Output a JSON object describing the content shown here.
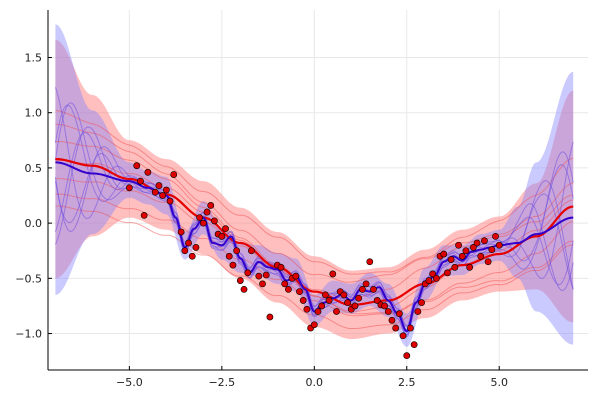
{
  "chart_data": {
    "type": "line",
    "title": "",
    "xlabel": "",
    "ylabel": "",
    "xlim": [
      -7.2,
      7.4
    ],
    "ylim": [
      -1.33,
      1.93
    ],
    "grid": true,
    "legend": "none",
    "x_ticks": [
      {
        "value": -5,
        "label": "−5.0"
      },
      {
        "value": -2.5,
        "label": "−2.5"
      },
      {
        "value": 0,
        "label": "0.0"
      },
      {
        "value": 2.5,
        "label": "2.5"
      },
      {
        "value": 5,
        "label": "5.0"
      }
    ],
    "y_ticks": [
      {
        "value": 1.5,
        "label": "1.5"
      },
      {
        "value": 1.0,
        "label": "1.0"
      },
      {
        "value": 0.5,
        "label": "0.5"
      },
      {
        "value": 0.0,
        "label": "0.0"
      },
      {
        "value": -0.5,
        "label": "−0.5"
      },
      {
        "value": -1.0,
        "label": "−1.0"
      }
    ],
    "colors": {
      "red_band": "#ff8080",
      "blue_band": "#8080ff",
      "red_mean": "#e60000",
      "blue_mean": "#3300cc",
      "red_samples": "#f05050",
      "blue_samples": "#7050e0",
      "points": "#dd0000"
    },
    "series": [
      {
        "role": "wide-model-mean",
        "x": [
          -7,
          -6,
          -5,
          -4,
          -3,
          -2,
          -1,
          0,
          1,
          2,
          3,
          4,
          5,
          6,
          7
        ],
        "y": [
          0.58,
          0.52,
          0.4,
          0.26,
          0.05,
          -0.18,
          -0.4,
          -0.62,
          -0.74,
          -0.7,
          -0.55,
          -0.38,
          -0.28,
          -0.12,
          0.15
        ]
      },
      {
        "role": "wide-model-band",
        "x": [
          -7,
          -6,
          -5,
          -4,
          -3,
          -2,
          -1,
          0,
          1,
          2,
          3,
          4,
          5,
          6,
          7
        ],
        "lower": [
          -0.5,
          -0.12,
          0.05,
          -0.06,
          -0.28,
          -0.5,
          -0.72,
          -0.94,
          -1.05,
          -1.0,
          -0.86,
          -0.7,
          -0.62,
          -0.6,
          -0.9
        ],
        "upper": [
          1.66,
          1.16,
          0.75,
          0.58,
          0.38,
          0.14,
          -0.08,
          -0.3,
          -0.43,
          -0.4,
          -0.24,
          -0.06,
          0.06,
          0.36,
          1.2
        ]
      },
      {
        "role": "flexible-model-mean",
        "x": [
          -7,
          -6,
          -5,
          -4.5,
          -4.0,
          -3.75,
          -3.5,
          -3.25,
          -3.0,
          -2.75,
          -2.5,
          -2.25,
          -2.0,
          -1.75,
          -1.5,
          -1.25,
          -1.0,
          -0.75,
          -0.5,
          -0.25,
          0.0,
          0.25,
          0.5,
          0.75,
          1.0,
          1.25,
          1.5,
          1.75,
          2.0,
          2.25,
          2.5,
          2.75,
          3.0,
          3.25,
          3.5,
          3.75,
          4.0,
          4.25,
          4.5,
          4.75,
          5.0,
          5.5,
          6,
          7
        ],
        "y": [
          0.55,
          0.45,
          0.38,
          0.32,
          0.25,
          0.05,
          -0.22,
          -0.05,
          0.05,
          -0.18,
          -0.2,
          -0.12,
          -0.32,
          -0.45,
          -0.35,
          -0.4,
          -0.42,
          -0.52,
          -0.48,
          -0.6,
          -0.8,
          -0.72,
          -0.68,
          -0.65,
          -0.7,
          -0.6,
          -0.62,
          -0.58,
          -0.7,
          -0.82,
          -0.98,
          -0.72,
          -0.55,
          -0.48,
          -0.35,
          -0.3,
          -0.34,
          -0.26,
          -0.24,
          -0.22,
          -0.2,
          -0.18,
          -0.1,
          0.05
        ]
      },
      {
        "role": "flexible-model-band",
        "x": [
          -7,
          -6,
          -5,
          -4.5,
          -4.0,
          -3.5,
          -3.0,
          -2.5,
          -2.0,
          -1.5,
          -1.0,
          -0.5,
          0.0,
          0.5,
          1.0,
          1.5,
          2.0,
          2.5,
          3.0,
          3.5,
          4.0,
          4.5,
          5.0,
          5.5,
          6,
          7
        ],
        "lower": [
          -0.65,
          -0.1,
          0.23,
          0.17,
          0.08,
          -0.33,
          -0.1,
          -0.33,
          -0.45,
          -0.48,
          -0.55,
          -0.62,
          -0.93,
          -0.8,
          -0.82,
          -0.75,
          -0.85,
          -1.12,
          -0.7,
          -0.48,
          -0.47,
          -0.37,
          -0.34,
          -0.5,
          -0.8,
          -1.1
        ],
        "upper": [
          1.8,
          1.02,
          0.55,
          0.47,
          0.42,
          -0.08,
          0.2,
          -0.05,
          -0.18,
          -0.2,
          -0.27,
          -0.32,
          -0.65,
          -0.52,
          -0.55,
          -0.45,
          -0.55,
          -0.82,
          -0.4,
          -0.2,
          -0.2,
          -0.1,
          -0.06,
          0.15,
          0.55,
          1.37
        ]
      }
    ],
    "points": {
      "x": [
        -5.0,
        -4.8,
        -4.7,
        -4.6,
        -4.5,
        -4.3,
        -4.2,
        -4.1,
        -4.0,
        -3.9,
        -3.8,
        -3.6,
        -3.5,
        -3.4,
        -3.3,
        -3.2,
        -3.1,
        -3.0,
        -2.9,
        -2.8,
        -2.7,
        -2.6,
        -2.5,
        -2.4,
        -2.3,
        -2.2,
        -2.1,
        -2.0,
        -1.9,
        -1.8,
        -1.7,
        -1.5,
        -1.4,
        -1.3,
        -1.2,
        -1.0,
        -0.9,
        -0.8,
        -0.7,
        -0.6,
        -0.5,
        -0.4,
        -0.3,
        -0.2,
        -0.1,
        0.0,
        0.1,
        0.2,
        0.3,
        0.4,
        0.5,
        0.6,
        0.7,
        0.8,
        0.9,
        1.0,
        1.1,
        1.2,
        1.3,
        1.4,
        1.5,
        1.6,
        1.7,
        1.8,
        1.9,
        2.0,
        2.1,
        2.2,
        2.3,
        2.4,
        2.5,
        2.6,
        2.7,
        2.8,
        2.9,
        3.0,
        3.1,
        3.2,
        3.3,
        3.4,
        3.5,
        3.6,
        3.7,
        3.8,
        3.9,
        4.0,
        4.1,
        4.2,
        4.3,
        4.4,
        4.5,
        4.6,
        4.7,
        4.8,
        4.9,
        5.0
      ],
      "y": [
        0.32,
        0.52,
        0.38,
        0.07,
        0.46,
        0.28,
        0.34,
        0.25,
        0.3,
        0.2,
        0.44,
        -0.08,
        -0.25,
        -0.18,
        -0.3,
        -0.22,
        0.05,
        0.0,
        0.1,
        0.16,
        0.02,
        -0.1,
        -0.12,
        -0.05,
        -0.3,
        -0.38,
        -0.25,
        -0.52,
        -0.6,
        -0.45,
        -0.25,
        -0.48,
        -0.55,
        -0.47,
        -0.85,
        -0.38,
        -0.4,
        -0.55,
        -0.6,
        -0.5,
        -0.48,
        -0.62,
        -0.7,
        -0.78,
        -0.95,
        -0.92,
        -0.8,
        -0.75,
        -0.65,
        -0.7,
        -0.46,
        -0.8,
        -0.62,
        -0.65,
        -0.72,
        -0.78,
        -0.75,
        -0.68,
        -0.6,
        -0.55,
        -0.35,
        -0.6,
        -0.7,
        -0.74,
        -0.75,
        -0.8,
        -0.88,
        -0.95,
        -0.82,
        -1.02,
        -1.2,
        -0.95,
        -1.1,
        -0.8,
        -0.72,
        -0.55,
        -0.52,
        -0.46,
        -0.5,
        -0.3,
        -0.28,
        -0.45,
        -0.33,
        -0.4,
        -0.2,
        -0.3,
        -0.25,
        -0.4,
        -0.22,
        -0.18,
        -0.3,
        -0.16,
        -0.35,
        -0.24,
        -0.12,
        -0.2
      ]
    }
  }
}
